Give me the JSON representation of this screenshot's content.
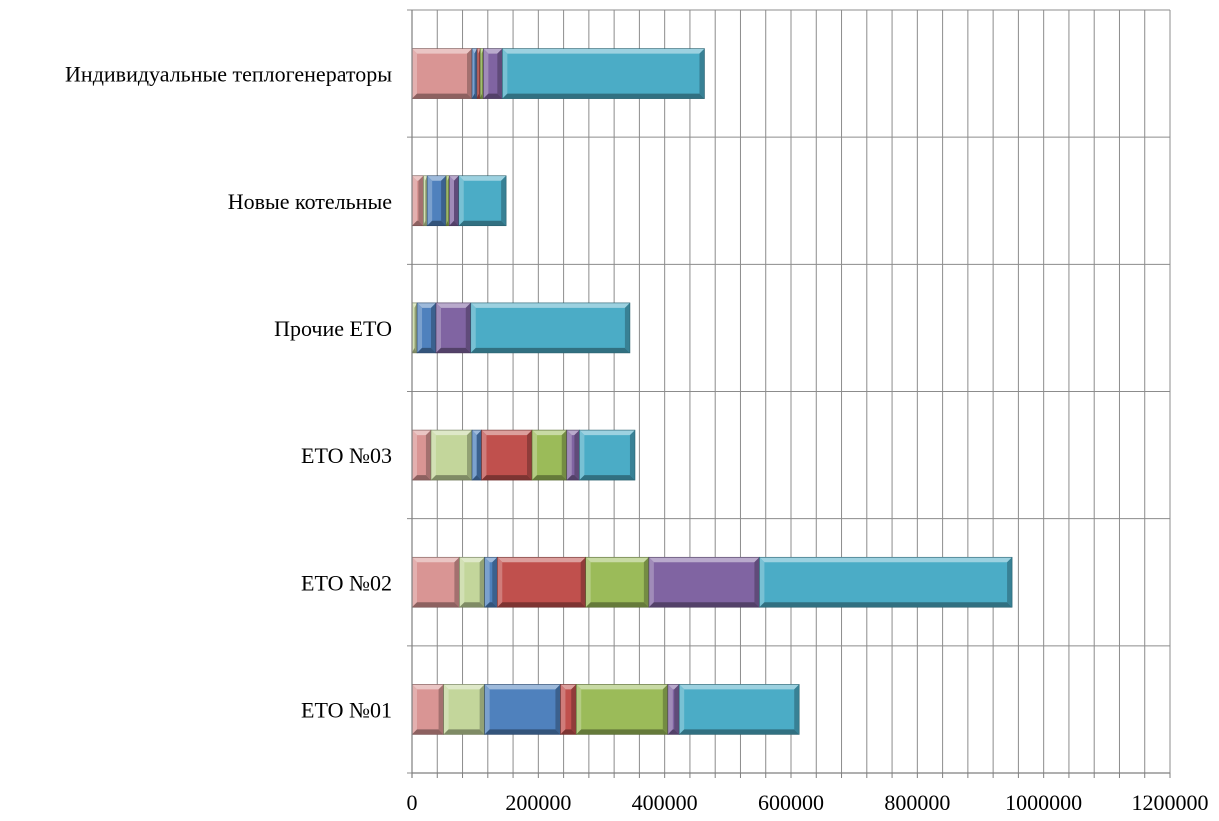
{
  "chart_data": {
    "type": "bar",
    "orientation": "horizontal",
    "stacked": true,
    "style": "3d-beveled",
    "grid": true,
    "legend": "none",
    "title": "",
    "xlabel": "",
    "ylabel": "",
    "xlim": [
      0,
      1200000
    ],
    "xticks": [
      0,
      40000,
      80000,
      120000,
      160000,
      200000,
      240000,
      280000,
      320000,
      360000,
      400000,
      440000,
      480000,
      520000,
      560000,
      600000,
      640000,
      680000,
      720000,
      760000,
      800000,
      840000,
      880000,
      920000,
      960000,
      1000000,
      1040000,
      1080000,
      1120000,
      1160000,
      1200000
    ],
    "xtick_labels": [
      "0",
      "200000",
      "400000",
      "600000",
      "800000",
      "1000000",
      "1200000"
    ],
    "categories": [
      "ЕТО №01",
      "ЕТО №02",
      "ЕТО №03",
      "Прочие ЕТО",
      "Новые котельные",
      "Индивидуальные теплогенераторы"
    ],
    "series": [
      {
        "color": "#D99594",
        "values": [
          50000,
          75000,
          30000,
          0,
          18000,
          95000
        ]
      },
      {
        "color": "#C3D69B",
        "values": [
          65000,
          40000,
          65000,
          8000,
          6000,
          0
        ]
      },
      {
        "color": "#4F81BD",
        "values": [
          120000,
          20000,
          15000,
          30000,
          30000,
          8000
        ]
      },
      {
        "color": "#C0504D",
        "values": [
          25000,
          140000,
          80000,
          0,
          0,
          5000
        ]
      },
      {
        "color": "#9BBB59",
        "values": [
          145000,
          100000,
          55000,
          0,
          5000,
          5000
        ]
      },
      {
        "color": "#8064A2",
        "values": [
          18000,
          175000,
          20000,
          55000,
          15000,
          30000
        ]
      },
      {
        "color": "#4BACC6",
        "values": [
          190000,
          400000,
          88000,
          252000,
          75000,
          320000
        ]
      }
    ]
  }
}
